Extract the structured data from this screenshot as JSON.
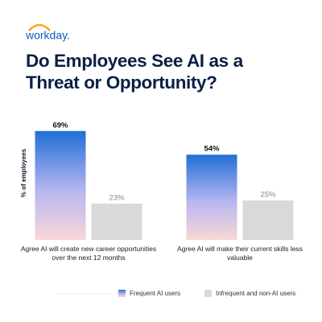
{
  "brand": "workday.",
  "chart_data": {
    "type": "bar",
    "title": "Do Employees See AI as a Threat or Opportunity?",
    "y_label": "% of employees",
    "categories": [
      "Agree AI will create new career opportunities over the next 12 months",
      "Agree AI will make their current skills less valuable"
    ],
    "series": [
      {
        "name": "Frequent AI users",
        "color": "#1f6fd8",
        "values": [
          69,
          54
        ],
        "value_labels": [
          "69%",
          "54%"
        ]
      },
      {
        "name": "Infrequent and non-AI users",
        "color": "#d9d9d9",
        "values": [
          23,
          25
        ],
        "value_labels": [
          "23%",
          "25%"
        ]
      }
    ]
  }
}
